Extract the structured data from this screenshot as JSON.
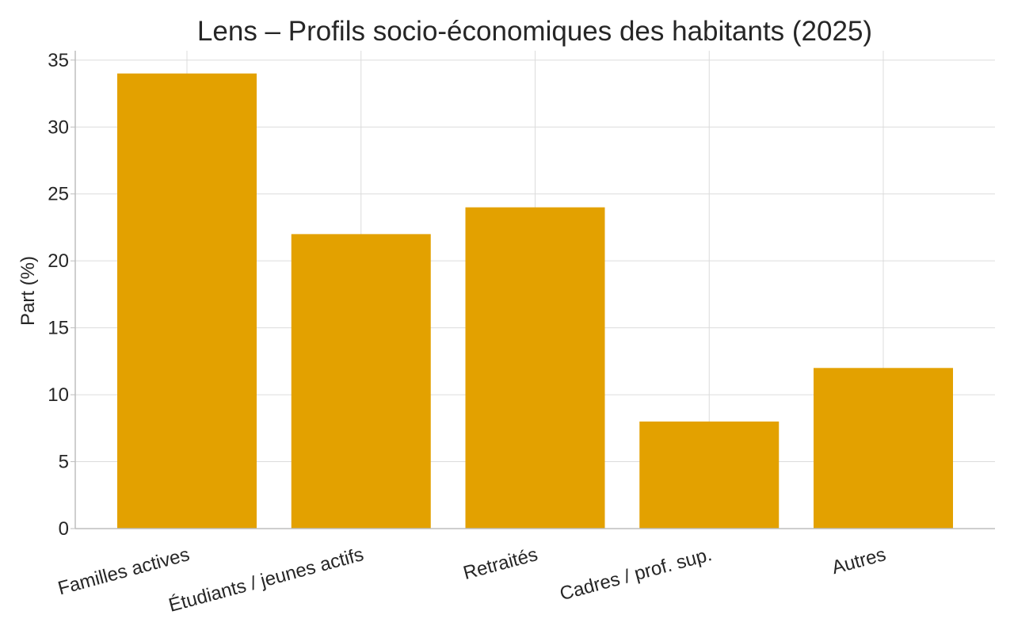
{
  "colors": {
    "bar": "#E3A100"
  },
  "chart_data": {
    "type": "bar",
    "title": "Lens – Profils socio-économiques des habitants (2025)",
    "xlabel": "",
    "ylabel": "Part (%)",
    "categories": [
      "Familles actives",
      "Étudiants / jeunes actifs",
      "Retraités",
      "Cadres / prof. sup.",
      "Autres"
    ],
    "values": [
      34,
      22,
      24,
      8,
      12
    ],
    "ylim": [
      0,
      35.7
    ],
    "yticks": [
      "0",
      "5",
      "10",
      "15",
      "20",
      "25",
      "30",
      "35"
    ],
    "grid": true,
    "legend": "none"
  }
}
